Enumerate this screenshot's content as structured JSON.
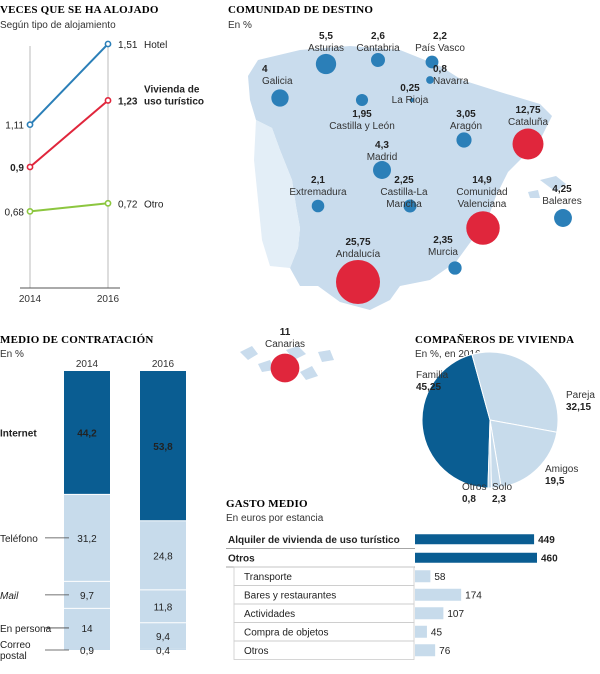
{
  "colors": {
    "dark_blue": "#0a5d92",
    "mid_blue": "#2b7fb8",
    "light_blue": "#c7dbeb",
    "red": "#e0263c",
    "green": "#8cc63f",
    "map": "#c9dced"
  },
  "chart_data": [
    {
      "id": "line",
      "type": "line",
      "title": "VECES QUE SE HA ALOJADO",
      "subtitle": "Según tipo de alojamiento",
      "x": [
        "2014",
        "2016"
      ],
      "ylim": [
        0.3,
        1.5
      ],
      "series": [
        {
          "name": "Vivienda de uso turístico",
          "name_lines": [
            "Vivienda de",
            "uso turístico"
          ],
          "values": [
            0.9,
            1.23
          ],
          "labels": [
            "0,9",
            "1,23"
          ],
          "color": "#e0263c"
        },
        {
          "name": "Hotel",
          "values": [
            1.11,
            1.51
          ],
          "labels": [
            "1,11",
            "1,51"
          ],
          "color": "#2b7fb8"
        },
        {
          "name": "Otro",
          "values": [
            0.68,
            0.72
          ],
          "labels": [
            "0,68",
            "0,72"
          ],
          "color": "#8cc63f"
        }
      ]
    },
    {
      "id": "map",
      "type": "bubble-map",
      "title": "COMUNIDAD DE DESTINO",
      "subtitle": "En %",
      "points": [
        {
          "name": "Asturias",
          "value": 5.5,
          "label": "5,5",
          "color": "blue"
        },
        {
          "name": "Cantabria",
          "value": 2.6,
          "label": "2,6",
          "color": "blue"
        },
        {
          "name": "País Vasco",
          "value": 2.2,
          "label": "2,2",
          "color": "blue"
        },
        {
          "name": "Galicia",
          "value": 4,
          "label": "4",
          "color": "blue"
        },
        {
          "name": "Navarra",
          "value": 0.8,
          "label": "0,8",
          "color": "blue"
        },
        {
          "name": "La Rioja",
          "value": 0.25,
          "label": "0,25",
          "color": "blue"
        },
        {
          "name": "Castilla y León",
          "value": 1.95,
          "label": "1,95",
          "color": "blue"
        },
        {
          "name": "Aragón",
          "value": 3.05,
          "label": "3,05",
          "color": "blue"
        },
        {
          "name": "Cataluña",
          "value": 12.75,
          "label": "12,75",
          "color": "red"
        },
        {
          "name": "Madrid",
          "value": 4.3,
          "label": "4,3",
          "color": "blue"
        },
        {
          "name": "Extremadura",
          "value": 2.1,
          "label": "2,1",
          "color": "blue"
        },
        {
          "name": "Castilla-La Mancha",
          "name_lines": [
            "Castilla-La",
            "Mancha"
          ],
          "value": 2.25,
          "label": "2,25",
          "color": "blue"
        },
        {
          "name": "Comunidad Valenciana",
          "name_lines": [
            "Comunidad",
            "Valenciana"
          ],
          "value": 14.9,
          "label": "14,9",
          "color": "red"
        },
        {
          "name": "Baleares",
          "value": 4.25,
          "label": "4,25",
          "color": "blue"
        },
        {
          "name": "Andalucía",
          "value": 25.75,
          "label": "25,75",
          "color": "red"
        },
        {
          "name": "Murcia",
          "value": 2.35,
          "label": "2,35",
          "color": "blue"
        },
        {
          "name": "Canarias",
          "value": 11,
          "label": "11",
          "color": "red"
        }
      ]
    },
    {
      "id": "stack",
      "type": "bar",
      "title": "MEDIO DE CONTRATACIÓN",
      "subtitle": "En %",
      "categories": [
        "2014",
        "2016"
      ],
      "series": [
        {
          "name": "Internet",
          "values": [
            44.2,
            53.8
          ],
          "labels": [
            "44,2",
            "53,8"
          ]
        },
        {
          "name": "Teléfono",
          "values": [
            31.2,
            24.8
          ],
          "labels": [
            "31,2",
            "24,8"
          ]
        },
        {
          "name": "Mail",
          "values": [
            9.7,
            11.8
          ],
          "labels": [
            "9,7",
            "11,8"
          ]
        },
        {
          "name": "En persona",
          "values": [
            14,
            9.4
          ],
          "labels": [
            "14",
            "9,4"
          ]
        },
        {
          "name": "Correo postal",
          "name_lines": [
            "Correo",
            "postal"
          ],
          "values": [
            0.9,
            0.4
          ],
          "labels": [
            "0,9",
            "0,4"
          ]
        }
      ]
    },
    {
      "id": "pie",
      "type": "pie",
      "title": "COMPAÑEROS DE VIVIENDA",
      "subtitle": "En %, en 2016",
      "slices": [
        {
          "name": "Familia",
          "value": 45.25,
          "label": "45,25"
        },
        {
          "name": "Pareja",
          "value": 32.15,
          "label": "32,15"
        },
        {
          "name": "Amigos",
          "value": 19.5,
          "label": "19,5"
        },
        {
          "name": "Solo",
          "value": 2.3,
          "label": "2,3"
        },
        {
          "name": "Otros",
          "value": 0.8,
          "label": "0,8"
        }
      ]
    },
    {
      "id": "hbar",
      "type": "bar",
      "title": "GASTO MEDIO",
      "subtitle": "En euros por estancia",
      "categories": [
        "Alquiler de vivienda de uso turístico",
        "Otros",
        "Transporte",
        "Bares y restaurantes",
        "Actividades",
        "Compra de objetos",
        "Otros"
      ],
      "values": [
        449,
        460,
        58,
        174,
        107,
        45,
        76
      ],
      "xlim": [
        0,
        460
      ]
    }
  ]
}
